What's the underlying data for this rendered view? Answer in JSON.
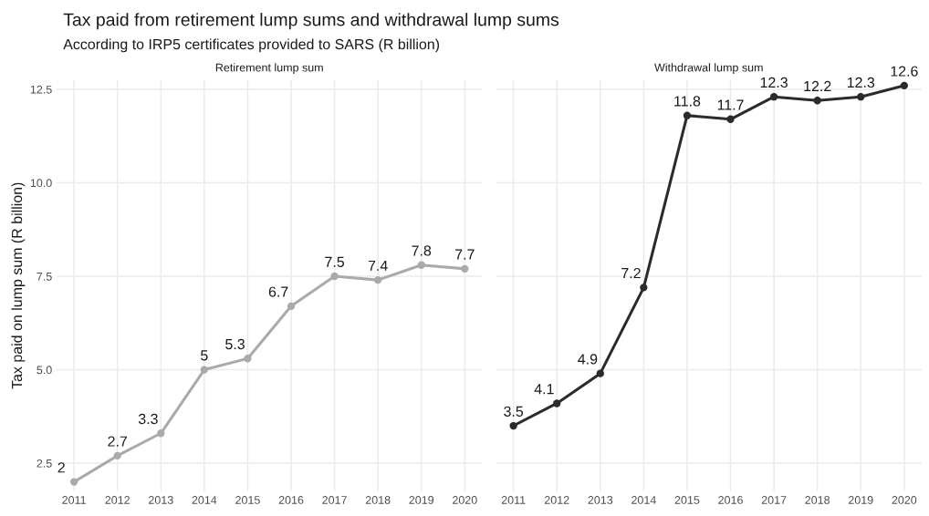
{
  "chart_data": [
    {
      "type": "line",
      "title": "Tax paid from retirement lump sums and withdrawal lump sums",
      "subtitle": "According to IRP5 certificates provided to SARS (R billion)",
      "ylabel": "Tax paid on lump sum (R billion)",
      "x": [
        2011,
        2012,
        2013,
        2014,
        2015,
        2016,
        2017,
        2018,
        2019,
        2020
      ],
      "series": [
        {
          "name": "Retirement lump sum",
          "color": "#aaaaaa",
          "values": [
            2,
            2.7,
            3.3,
            5,
            5.3,
            6.7,
            7.5,
            7.4,
            7.8,
            7.7
          ]
        }
      ],
      "xlim": [
        2010.6,
        2020.4
      ],
      "xticks": [
        2011,
        2012,
        2013,
        2014,
        2015,
        2016,
        2017,
        2018,
        2019,
        2020
      ],
      "ylim": [
        1.75,
        12.75
      ],
      "yticks": [
        2.5,
        {
          "value": 5,
          "label": "5.0"
        },
        7.5,
        {
          "value": 10,
          "label": "10.0"
        },
        12.5
      ],
      "grid": true,
      "marker": "circle",
      "line_style": "solid",
      "data_labels": true,
      "legend": false
    },
    {
      "type": "line",
      "x": [
        2011,
        2012,
        2013,
        2014,
        2015,
        2016,
        2017,
        2018,
        2019,
        2020
      ],
      "series": [
        {
          "name": "Withdrawal lump sum",
          "color": "#2b2b2b",
          "values": [
            3.5,
            4.1,
            4.9,
            7.2,
            11.8,
            11.7,
            12.3,
            12.2,
            12.3,
            12.6
          ]
        }
      ],
      "xlim": [
        2010.6,
        2020.4
      ],
      "xticks": [
        2011,
        2012,
        2013,
        2014,
        2015,
        2016,
        2017,
        2018,
        2019,
        2020
      ],
      "ylim": [
        1.75,
        12.75
      ],
      "yticks": [
        2.5,
        5,
        7.5,
        10,
        12.5
      ],
      "tick_labels": "x",
      "grid": true,
      "marker": "circle",
      "line_style": "solid",
      "data_labels": true,
      "legend": false
    }
  ]
}
